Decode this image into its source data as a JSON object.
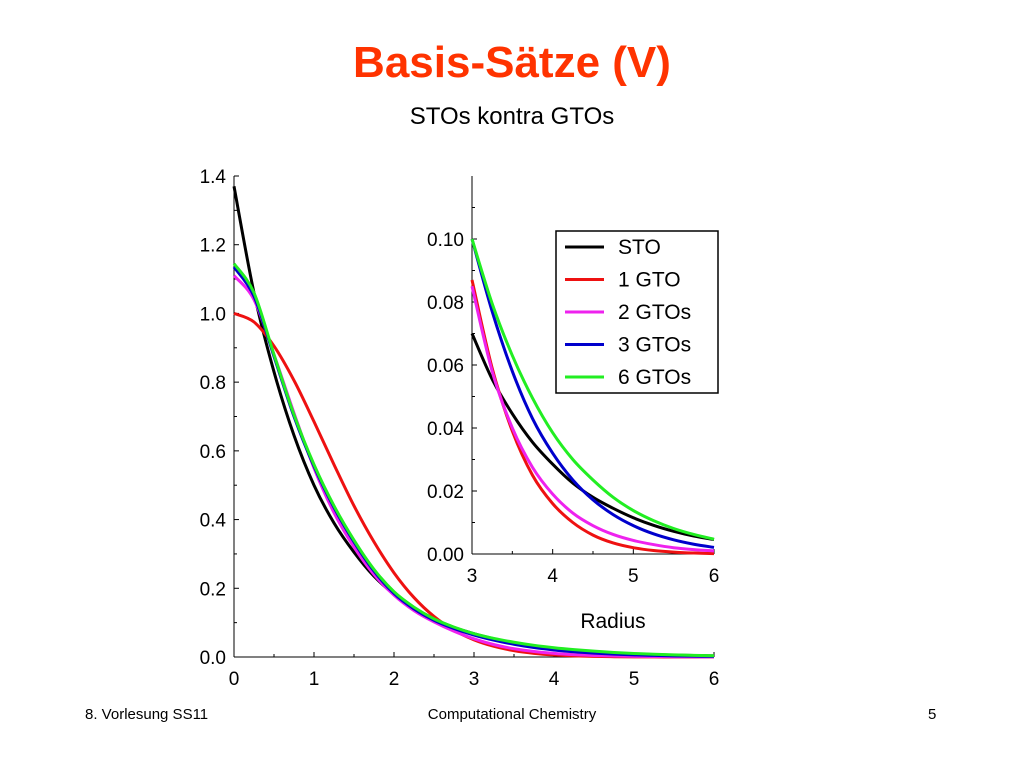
{
  "slide": {
    "title": "Basis-Sätze (V)",
    "subtitle": "STOs kontra GTOs",
    "footer_left": "8. Vorlesung SS11",
    "footer_center": "Computational Chemistry",
    "footer_right": "5",
    "title_color": "#ff3300"
  },
  "chart_data": [
    {
      "type": "line",
      "id": "main",
      "xlabel": "Radius",
      "ylabel": "",
      "xlim": [
        0,
        6
      ],
      "ylim": [
        0,
        1.4
      ],
      "xticks": [
        "0",
        "1",
        "2",
        "3",
        "4",
        "5",
        "6"
      ],
      "yticks": [
        "0.0",
        "0.2",
        "0.4",
        "0.6",
        "0.8",
        "1.0",
        "1.2",
        "1.4"
      ],
      "x": [
        0,
        0.25,
        0.5,
        0.75,
        1,
        1.25,
        1.5,
        1.75,
        2,
        2.25,
        2.5,
        2.75,
        3,
        3.25,
        3.5,
        3.75,
        4,
        4.25,
        4.5,
        4.75,
        5,
        5.25,
        5.5,
        5.75,
        6
      ],
      "series": [
        {
          "name": "STO",
          "color": "#000000",
          "values": [
            1.37,
            1.06,
            0.83,
            0.645,
            0.5,
            0.39,
            0.305,
            0.235,
            0.183,
            0.143,
            0.111,
            0.086,
            0.068,
            0.053,
            0.041,
            0.032,
            0.025,
            0.019,
            0.015,
            0.0115,
            0.009,
            0.007,
            0.0055,
            0.0043,
            0.0034
          ]
        },
        {
          "name": "1 GTO",
          "color": "#ee1111",
          "values": [
            1.0,
            0.975,
            0.905,
            0.805,
            0.685,
            0.56,
            0.44,
            0.335,
            0.245,
            0.173,
            0.118,
            0.078,
            0.05,
            0.031,
            0.0185,
            0.0107,
            0.006,
            0.0033,
            0.0017,
            0.0009,
            0.0004,
            0.0002,
            0.0001,
            0.0,
            0.0
          ]
        },
        {
          "name": "2 GTOs",
          "color": "#ee22ee",
          "values": [
            1.11,
            1.04,
            0.88,
            0.71,
            0.55,
            0.42,
            0.32,
            0.24,
            0.18,
            0.135,
            0.102,
            0.075,
            0.053,
            0.036,
            0.024,
            0.016,
            0.0105,
            0.0068,
            0.0044,
            0.0029,
            0.0019,
            0.0013,
            0.0009,
            0.0006,
            0.0004
          ]
        },
        {
          "name": "3 GTOs",
          "color": "#0000cc",
          "values": [
            1.135,
            1.05,
            0.875,
            0.7,
            0.555,
            0.435,
            0.335,
            0.25,
            0.185,
            0.14,
            0.107,
            0.083,
            0.064,
            0.049,
            0.037,
            0.0275,
            0.0205,
            0.0152,
            0.0113,
            0.0083,
            0.0061,
            0.0046,
            0.0034,
            0.0025,
            0.0018
          ]
        },
        {
          "name": "6 GTOs",
          "color": "#22ee22",
          "values": [
            1.145,
            1.06,
            0.88,
            0.705,
            0.56,
            0.44,
            0.34,
            0.255,
            0.19,
            0.145,
            0.111,
            0.087,
            0.068,
            0.054,
            0.043,
            0.034,
            0.027,
            0.0215,
            0.017,
            0.0132,
            0.0102,
            0.0079,
            0.0061,
            0.0047,
            0.0036
          ]
        }
      ]
    },
    {
      "type": "line",
      "id": "inset",
      "xlabel": "Radius",
      "ylabel": "",
      "xlim": [
        3,
        6
      ],
      "ylim": [
        0,
        0.12
      ],
      "xticks": [
        "3",
        "4",
        "5",
        "6"
      ],
      "yticks": [
        "0.00",
        "0.02",
        "0.04",
        "0.06",
        "0.08",
        "0.10"
      ],
      "legend": "top-right",
      "x": [
        3,
        3.25,
        3.5,
        3.75,
        4,
        4.25,
        4.5,
        4.75,
        5,
        5.25,
        5.5,
        5.75,
        6
      ],
      "series": [
        {
          "name": "STO",
          "color": "#000000",
          "values": [
            0.07,
            0.0555,
            0.0445,
            0.0355,
            0.0285,
            0.0225,
            0.018,
            0.0145,
            0.0115,
            0.0091,
            0.0072,
            0.0057,
            0.0046
          ]
        },
        {
          "name": "1 GTO",
          "color": "#ee1111",
          "values": [
            0.087,
            0.059,
            0.039,
            0.025,
            0.016,
            0.01,
            0.006,
            0.0035,
            0.002,
            0.0011,
            0.0006,
            0.0003,
            0.0001
          ]
        },
        {
          "name": "2 GTOs",
          "color": "#ee22ee",
          "values": [
            0.085,
            0.058,
            0.04,
            0.0275,
            0.019,
            0.013,
            0.009,
            0.0062,
            0.0043,
            0.003,
            0.002,
            0.0014,
            0.001
          ]
        },
        {
          "name": "3 GTOs",
          "color": "#0000cc",
          "values": [
            0.1,
            0.077,
            0.058,
            0.043,
            0.032,
            0.0235,
            0.0172,
            0.0125,
            0.009,
            0.0064,
            0.0045,
            0.0031,
            0.0021
          ]
        },
        {
          "name": "6 GTOs",
          "color": "#22ee22",
          "values": [
            0.1,
            0.0795,
            0.063,
            0.0495,
            0.0385,
            0.03,
            0.0235,
            0.018,
            0.0138,
            0.0106,
            0.0081,
            0.0062,
            0.0047
          ]
        }
      ]
    }
  ]
}
